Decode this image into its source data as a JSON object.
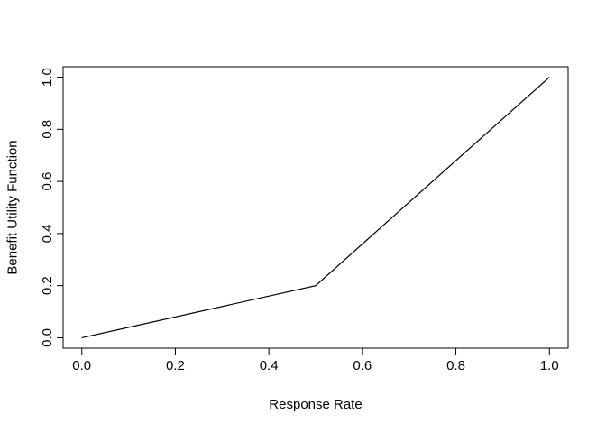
{
  "chart_data": {
    "type": "line",
    "title": "",
    "xlabel": "Response Rate",
    "ylabel": "Benefit Utility Function",
    "x": [
      0.0,
      0.5,
      1.0
    ],
    "y": [
      0.0,
      0.2,
      1.0
    ],
    "xlim": [
      0.0,
      1.0
    ],
    "ylim": [
      0.0,
      1.0
    ],
    "x_tick_labels": [
      "0.0",
      "0.2",
      "0.4",
      "0.6",
      "0.8",
      "1.0"
    ],
    "y_tick_labels": [
      "0.0",
      "0.2",
      "0.4",
      "0.6",
      "0.8",
      "1.0"
    ],
    "grid": false,
    "legend": null,
    "line_color": "#000000",
    "box_color": "#000000",
    "background": "#ffffff"
  }
}
